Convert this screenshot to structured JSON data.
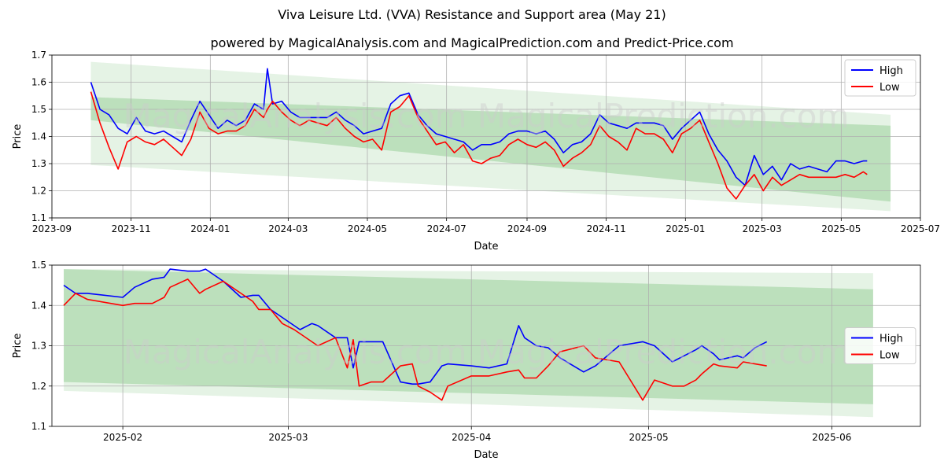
{
  "title": "Viva Leisure Ltd. (VVA) Resistance and Support area (May 21)",
  "subtitle": "powered by MagicalAnalysis.com and MagicalPrediction.com and Predict-Price.com",
  "watermark": "MagicalAnalysis.com    MagicalPrediction.com",
  "colors": {
    "high": "#0000ff",
    "low": "#ff0000",
    "band": "#2ca02c",
    "grid": "#b0b0b0"
  },
  "chart_data": [
    {
      "type": "line",
      "xlabel": "Date",
      "ylabel": "Price",
      "ylim": [
        1.1,
        1.7
      ],
      "xlim": [
        "2023-09-01",
        "2025-07-01"
      ],
      "x_ticks": [
        "2023-09",
        "2023-11",
        "2024-01",
        "2024-03",
        "2024-05",
        "2024-07",
        "2024-09",
        "2024-11",
        "2025-01",
        "2025-03",
        "2025-05",
        "2025-07"
      ],
      "y_ticks": [
        "1.1",
        "1.2",
        "1.3",
        "1.4",
        "1.5",
        "1.6",
        "1.7"
      ],
      "legend": "top-right",
      "grid": true,
      "bands": [
        {
          "x": [
            "2023-10-01",
            "2025-06-08"
          ],
          "upper": [
            1.675,
            1.48
          ],
          "lower": [
            1.295,
            1.125
          ],
          "alpha": 0.12
        },
        {
          "x": [
            "2023-10-01",
            "2025-06-08"
          ],
          "upper": [
            1.545,
            1.44
          ],
          "lower": [
            1.46,
            1.16
          ],
          "alpha": 0.22
        }
      ],
      "series": [
        {
          "name": "High",
          "x": [
            "2023-10-01",
            "2023-10-08",
            "2023-10-15",
            "2023-10-22",
            "2023-10-29",
            "2023-11-05",
            "2023-11-12",
            "2023-11-19",
            "2023-11-26",
            "2023-12-03",
            "2023-12-10",
            "2023-12-17",
            "2023-12-24",
            "2023-12-31",
            "2024-01-07",
            "2024-01-14",
            "2024-01-21",
            "2024-01-28",
            "2024-02-04",
            "2024-02-11",
            "2024-02-14",
            "2024-02-18",
            "2024-02-25",
            "2024-03-03",
            "2024-03-10",
            "2024-03-17",
            "2024-03-24",
            "2024-03-31",
            "2024-04-07",
            "2024-04-14",
            "2024-04-21",
            "2024-04-28",
            "2024-05-05",
            "2024-05-12",
            "2024-05-19",
            "2024-05-26",
            "2024-06-02",
            "2024-06-09",
            "2024-06-16",
            "2024-06-23",
            "2024-06-30",
            "2024-07-07",
            "2024-07-14",
            "2024-07-21",
            "2024-07-28",
            "2024-08-04",
            "2024-08-11",
            "2024-08-18",
            "2024-08-25",
            "2024-09-01",
            "2024-09-08",
            "2024-09-15",
            "2024-09-22",
            "2024-09-29",
            "2024-10-06",
            "2024-10-13",
            "2024-10-20",
            "2024-10-27",
            "2024-11-03",
            "2024-11-10",
            "2024-11-17",
            "2024-11-24",
            "2024-12-01",
            "2024-12-08",
            "2024-12-15",
            "2024-12-22",
            "2024-12-29",
            "2025-01-05",
            "2025-01-12",
            "2025-01-19",
            "2025-01-26",
            "2025-02-02",
            "2025-02-09",
            "2025-02-16",
            "2025-02-23",
            "2025-03-02",
            "2025-03-09",
            "2025-03-16",
            "2025-03-23",
            "2025-03-30",
            "2025-04-06",
            "2025-04-13",
            "2025-04-20",
            "2025-04-27",
            "2025-05-04",
            "2025-05-11",
            "2025-05-18",
            "2025-05-21"
          ],
          "values": [
            1.6,
            1.5,
            1.48,
            1.43,
            1.41,
            1.47,
            1.42,
            1.41,
            1.42,
            1.4,
            1.38,
            1.46,
            1.53,
            1.48,
            1.43,
            1.46,
            1.44,
            1.46,
            1.52,
            1.5,
            1.65,
            1.52,
            1.53,
            1.49,
            1.47,
            1.47,
            1.47,
            1.47,
            1.49,
            1.46,
            1.44,
            1.41,
            1.42,
            1.43,
            1.52,
            1.55,
            1.56,
            1.48,
            1.44,
            1.41,
            1.4,
            1.39,
            1.38,
            1.35,
            1.37,
            1.37,
            1.38,
            1.41,
            1.42,
            1.42,
            1.41,
            1.42,
            1.39,
            1.34,
            1.37,
            1.38,
            1.41,
            1.48,
            1.45,
            1.44,
            1.43,
            1.45,
            1.45,
            1.45,
            1.44,
            1.39,
            1.43,
            1.46,
            1.49,
            1.41,
            1.35,
            1.31,
            1.25,
            1.22,
            1.33,
            1.26,
            1.29,
            1.24,
            1.3,
            1.28,
            1.29,
            1.28,
            1.27,
            1.31,
            1.31,
            1.3,
            1.31,
            1.31
          ]
        },
        {
          "name": "Low",
          "x": [
            "2023-10-01",
            "2023-10-08",
            "2023-10-15",
            "2023-10-22",
            "2023-10-29",
            "2023-11-05",
            "2023-11-12",
            "2023-11-19",
            "2023-11-26",
            "2023-12-03",
            "2023-12-10",
            "2023-12-17",
            "2023-12-24",
            "2023-12-31",
            "2024-01-07",
            "2024-01-14",
            "2024-01-21",
            "2024-01-28",
            "2024-02-04",
            "2024-02-11",
            "2024-02-14",
            "2024-02-18",
            "2024-02-25",
            "2024-03-03",
            "2024-03-10",
            "2024-03-17",
            "2024-03-24",
            "2024-03-31",
            "2024-04-07",
            "2024-04-14",
            "2024-04-21",
            "2024-04-28",
            "2024-05-05",
            "2024-05-12",
            "2024-05-19",
            "2024-05-26",
            "2024-06-02",
            "2024-06-09",
            "2024-06-16",
            "2024-06-23",
            "2024-06-30",
            "2024-07-07",
            "2024-07-14",
            "2024-07-21",
            "2024-07-28",
            "2024-08-04",
            "2024-08-11",
            "2024-08-18",
            "2024-08-25",
            "2024-09-01",
            "2024-09-08",
            "2024-09-15",
            "2024-09-22",
            "2024-09-29",
            "2024-10-06",
            "2024-10-13",
            "2024-10-20",
            "2024-10-27",
            "2024-11-03",
            "2024-11-10",
            "2024-11-17",
            "2024-11-24",
            "2024-12-01",
            "2024-12-08",
            "2024-12-15",
            "2024-12-22",
            "2024-12-29",
            "2025-01-05",
            "2025-01-12",
            "2025-01-19",
            "2025-01-26",
            "2025-02-02",
            "2025-02-09",
            "2025-02-16",
            "2025-02-23",
            "2025-03-02",
            "2025-03-09",
            "2025-03-16",
            "2025-03-23",
            "2025-03-30",
            "2025-04-06",
            "2025-04-13",
            "2025-04-20",
            "2025-04-27",
            "2025-05-04",
            "2025-05-11",
            "2025-05-18",
            "2025-05-21"
          ],
          "values": [
            1.565,
            1.45,
            1.36,
            1.28,
            1.38,
            1.4,
            1.38,
            1.37,
            1.39,
            1.36,
            1.33,
            1.39,
            1.49,
            1.43,
            1.41,
            1.42,
            1.42,
            1.44,
            1.5,
            1.47,
            1.5,
            1.53,
            1.49,
            1.46,
            1.44,
            1.46,
            1.45,
            1.44,
            1.47,
            1.43,
            1.4,
            1.38,
            1.39,
            1.35,
            1.49,
            1.51,
            1.55,
            1.47,
            1.42,
            1.37,
            1.38,
            1.34,
            1.37,
            1.31,
            1.3,
            1.32,
            1.33,
            1.37,
            1.39,
            1.37,
            1.36,
            1.38,
            1.35,
            1.29,
            1.32,
            1.34,
            1.37,
            1.44,
            1.4,
            1.38,
            1.35,
            1.43,
            1.41,
            1.41,
            1.39,
            1.34,
            1.41,
            1.43,
            1.46,
            1.38,
            1.3,
            1.21,
            1.17,
            1.22,
            1.26,
            1.2,
            1.25,
            1.22,
            1.24,
            1.26,
            1.25,
            1.25,
            1.25,
            1.25,
            1.26,
            1.25,
            1.27,
            1.26
          ]
        }
      ]
    },
    {
      "type": "line",
      "xlabel": "Date",
      "ylabel": "Price",
      "ylim": [
        1.1,
        1.5
      ],
      "xlim": [
        "2025-01-20",
        "2025-06-16"
      ],
      "x_ticks": [
        "2025-02",
        "2025-03",
        "2025-04",
        "2025-05",
        "2025-06"
      ],
      "y_ticks": [
        "1.1",
        "1.2",
        "1.3",
        "1.4",
        "1.5"
      ],
      "legend": "center-right",
      "grid": true,
      "bands": [
        {
          "x": [
            "2025-01-22",
            "2025-06-08"
          ],
          "upper": [
            1.49,
            1.48
          ],
          "lower": [
            1.188,
            1.123
          ],
          "alpha": 0.12
        },
        {
          "x": [
            "2025-01-22",
            "2025-06-08"
          ],
          "upper": [
            1.49,
            1.44
          ],
          "lower": [
            1.21,
            1.155
          ],
          "alpha": 0.22
        }
      ],
      "series": [
        {
          "name": "High",
          "x": [
            "2025-01-22",
            "2025-01-24",
            "2025-01-26",
            "2025-02-01",
            "2025-02-03",
            "2025-02-06",
            "2025-02-08",
            "2025-02-09",
            "2025-02-12",
            "2025-02-14",
            "2025-02-15",
            "2025-02-18",
            "2025-02-21",
            "2025-02-23",
            "2025-02-24",
            "2025-02-26",
            "2025-02-28",
            "2025-03-02",
            "2025-03-03",
            "2025-03-05",
            "2025-03-06",
            "2025-03-09",
            "2025-03-11",
            "2025-03-12",
            "2025-03-13",
            "2025-03-15",
            "2025-03-17",
            "2025-03-20",
            "2025-03-22",
            "2025-03-23",
            "2025-03-25",
            "2025-03-27",
            "2025-03-28",
            "2025-04-01",
            "2025-04-04",
            "2025-04-07",
            "2025-04-09",
            "2025-04-10",
            "2025-04-12",
            "2025-04-14",
            "2025-04-16",
            "2025-04-20",
            "2025-04-22",
            "2025-04-26",
            "2025-04-30",
            "2025-05-02",
            "2025-05-05",
            "2025-05-07",
            "2025-05-09",
            "2025-05-10",
            "2025-05-12",
            "2025-05-13",
            "2025-05-16",
            "2025-05-17",
            "2025-05-19",
            "2025-05-21"
          ],
          "values": [
            1.45,
            1.43,
            1.43,
            1.42,
            1.445,
            1.465,
            1.47,
            1.49,
            1.485,
            1.485,
            1.49,
            1.46,
            1.42,
            1.425,
            1.425,
            1.39,
            1.37,
            1.35,
            1.34,
            1.355,
            1.35,
            1.32,
            1.32,
            1.245,
            1.31,
            1.31,
            1.31,
            1.21,
            1.205,
            1.205,
            1.21,
            1.25,
            1.255,
            1.25,
            1.245,
            1.255,
            1.35,
            1.32,
            1.3,
            1.295,
            1.27,
            1.235,
            1.25,
            1.3,
            1.31,
            1.3,
            1.26,
            1.275,
            1.29,
            1.3,
            1.28,
            1.265,
            1.275,
            1.27,
            1.295,
            1.31
          ]
        },
        {
          "name": "Low",
          "x": [
            "2025-01-22",
            "2025-01-24",
            "2025-01-26",
            "2025-02-01",
            "2025-02-03",
            "2025-02-06",
            "2025-02-08",
            "2025-02-09",
            "2025-02-12",
            "2025-02-14",
            "2025-02-15",
            "2025-02-18",
            "2025-02-21",
            "2025-02-23",
            "2025-02-24",
            "2025-02-26",
            "2025-02-28",
            "2025-03-02",
            "2025-03-03",
            "2025-03-05",
            "2025-03-06",
            "2025-03-09",
            "2025-03-11",
            "2025-03-12",
            "2025-03-13",
            "2025-03-15",
            "2025-03-17",
            "2025-03-20",
            "2025-03-22",
            "2025-03-23",
            "2025-03-25",
            "2025-03-27",
            "2025-03-28",
            "2025-04-01",
            "2025-04-04",
            "2025-04-07",
            "2025-04-09",
            "2025-04-10",
            "2025-04-12",
            "2025-04-14",
            "2025-04-16",
            "2025-04-20",
            "2025-04-22",
            "2025-04-26",
            "2025-04-30",
            "2025-05-02",
            "2025-05-05",
            "2025-05-07",
            "2025-05-09",
            "2025-05-10",
            "2025-05-12",
            "2025-05-13",
            "2025-05-16",
            "2025-05-17",
            "2025-05-19",
            "2025-05-21"
          ],
          "values": [
            1.4,
            1.43,
            1.415,
            1.4,
            1.405,
            1.405,
            1.42,
            1.445,
            1.465,
            1.43,
            1.44,
            1.46,
            1.43,
            1.41,
            1.39,
            1.39,
            1.355,
            1.34,
            1.33,
            1.31,
            1.3,
            1.32,
            1.245,
            1.315,
            1.2,
            1.21,
            1.21,
            1.25,
            1.255,
            1.2,
            1.185,
            1.165,
            1.2,
            1.225,
            1.225,
            1.235,
            1.24,
            1.22,
            1.22,
            1.25,
            1.285,
            1.3,
            1.27,
            1.26,
            1.165,
            1.215,
            1.2,
            1.2,
            1.215,
            1.23,
            1.255,
            1.25,
            1.245,
            1.26,
            1.255,
            1.25
          ]
        }
      ]
    }
  ]
}
